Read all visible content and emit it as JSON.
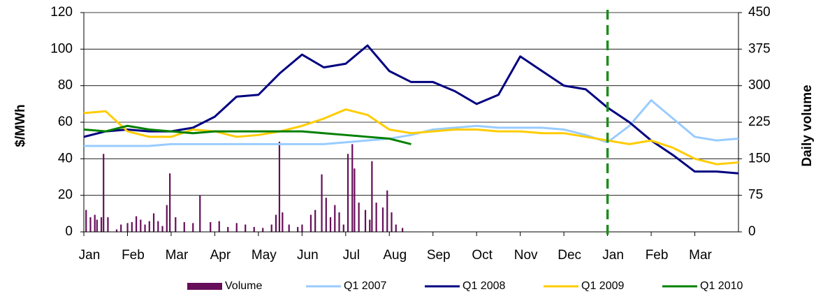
{
  "chart_data": {
    "type": "line",
    "y_label": "$/MWh",
    "y2_label": "Daily volume",
    "xlim": [
      0,
      15
    ],
    "xticks": [
      {
        "value": 0,
        "label": "Jan"
      },
      {
        "value": 1,
        "label": "Feb"
      },
      {
        "value": 2,
        "label": "Mar"
      },
      {
        "value": 3,
        "label": "Apr"
      },
      {
        "value": 4,
        "label": "May"
      },
      {
        "value": 5,
        "label": "Jun"
      },
      {
        "value": 6,
        "label": "Jul"
      },
      {
        "value": 7,
        "label": "Aug"
      },
      {
        "value": 8,
        "label": "Sep"
      },
      {
        "value": 9,
        "label": "Oct"
      },
      {
        "value": 10,
        "label": "Nov"
      },
      {
        "value": 11,
        "label": "Dec"
      },
      {
        "value": 12,
        "label": "Jan"
      },
      {
        "value": 13,
        "label": "Feb"
      },
      {
        "value": 14,
        "label": "Mar"
      }
    ],
    "ylim": [
      0,
      120
    ],
    "yticks": [
      0,
      20,
      40,
      60,
      80,
      100,
      120
    ],
    "y2lim": [
      0,
      450
    ],
    "y2ticks": [
      0,
      75,
      150,
      225,
      300,
      375,
      450
    ],
    "grid": true,
    "vline": {
      "value": 12,
      "color": "#1e8c1e"
    },
    "x": [
      0,
      0.5,
      1,
      1.5,
      2,
      2.5,
      3,
      3.5,
      4,
      4.5,
      5,
      5.5,
      6,
      6.5,
      7,
      7.5,
      8,
      8.5,
      9,
      9.5,
      10,
      10.5,
      11,
      11.5,
      12,
      12.5,
      13,
      13.5,
      14,
      14.5,
      15
    ],
    "series": [
      {
        "name": "Volume",
        "type": "bar",
        "axis": "y2",
        "color": "#660e5a",
        "x": [
          0.05,
          0.15,
          0.25,
          0.3,
          0.4,
          0.45,
          0.55,
          0.75,
          0.85,
          1.0,
          1.1,
          1.2,
          1.3,
          1.4,
          1.5,
          1.6,
          1.7,
          1.8,
          1.9,
          1.97,
          2.1,
          2.3,
          2.5,
          2.66,
          2.9,
          3.1,
          3.3,
          3.5,
          3.7,
          3.9,
          4.1,
          4.3,
          4.4,
          4.48,
          4.55,
          4.7,
          4.9,
          5.0,
          5.2,
          5.3,
          5.45,
          5.55,
          5.65,
          5.75,
          5.85,
          5.95,
          6.05,
          6.15,
          6.2,
          6.3,
          6.45,
          6.55,
          6.6,
          6.7,
          6.85,
          6.95,
          7.05,
          7.15,
          7.3
        ],
        "values": [
          45,
          30,
          35,
          25,
          30,
          160,
          30,
          5,
          15,
          18,
          20,
          32,
          25,
          15,
          22,
          38,
          22,
          12,
          55,
          120,
          30,
          20,
          18,
          75,
          20,
          22,
          10,
          18,
          15,
          10,
          8,
          15,
          35,
          185,
          40,
          15,
          10,
          15,
          35,
          45,
          118,
          70,
          30,
          55,
          40,
          15,
          160,
          180,
          130,
          60,
          45,
          25,
          145,
          60,
          50,
          85,
          40,
          15,
          8
        ]
      },
      {
        "name": "Q1 2007",
        "color": "#99ccff",
        "values": [
          47,
          47,
          47,
          47,
          48,
          48,
          48,
          48,
          48,
          48,
          48,
          48,
          49,
          50,
          51,
          53,
          56,
          57,
          58,
          57,
          57,
          57,
          56,
          53,
          49,
          58,
          72,
          62,
          52,
          50,
          51
        ]
      },
      {
        "name": "Q1 2008",
        "color": "#000080",
        "values": [
          52,
          55,
          56,
          55,
          55,
          57,
          63,
          74,
          75,
          87,
          97,
          90,
          92,
          102,
          88,
          82,
          82,
          77,
          70,
          75,
          96,
          88,
          80,
          78,
          68,
          60,
          50,
          42,
          33,
          33,
          32
        ]
      },
      {
        "name": "Q1 2009",
        "color": "#ffcc00",
        "values": [
          65,
          66,
          55,
          52,
          52,
          56,
          55,
          52,
          53,
          55,
          58,
          62,
          67,
          64,
          56,
          54,
          55,
          56,
          56,
          55,
          55,
          54,
          54,
          52,
          50,
          48,
          50,
          46,
          40,
          37,
          38
        ]
      },
      {
        "name": "Q1 2010",
        "color": "#008000",
        "values": [
          56,
          55,
          58,
          56,
          55,
          54,
          55,
          55,
          55,
          55,
          55,
          54,
          53,
          52,
          51,
          48,
          null,
          null,
          null,
          null,
          null,
          null,
          null,
          null,
          null,
          null,
          null,
          null,
          null,
          null,
          null
        ]
      }
    ]
  }
}
